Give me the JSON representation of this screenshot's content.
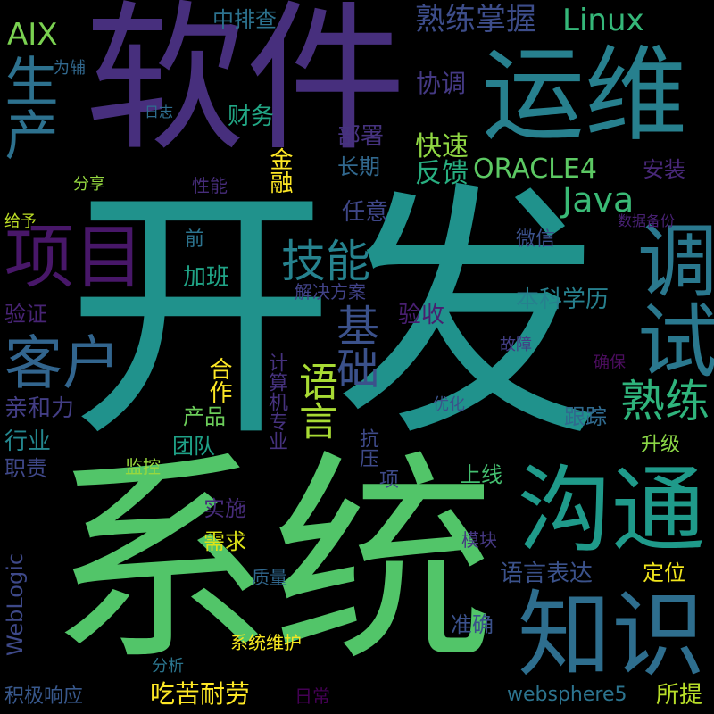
{
  "word_cloud": {
    "words": [
      {
        "text": "开发",
        "color": "#20928c",
        "orientation": "horizontal"
      },
      {
        "text": "系统",
        "color": "#52c569",
        "orientation": "horizontal"
      },
      {
        "text": "软件",
        "color": "#472f7d",
        "orientation": "horizontal"
      },
      {
        "text": "运维",
        "color": "#27808e",
        "orientation": "horizontal"
      },
      {
        "text": "沟通",
        "color": "#1f9a8a",
        "orientation": "horizontal"
      },
      {
        "text": "知识",
        "color": "#2e6e8e",
        "orientation": "horizontal"
      },
      {
        "text": "项目",
        "color": "#481769",
        "orientation": "horizontal"
      },
      {
        "text": "调试",
        "color": "#2a788e",
        "orientation": "vertical"
      },
      {
        "text": "客户",
        "color": "#32658e",
        "orientation": "horizontal"
      },
      {
        "text": "技能",
        "color": "#26828e",
        "orientation": "horizontal"
      },
      {
        "text": "熟练",
        "color": "#2fb47c",
        "orientation": "horizontal"
      },
      {
        "text": "基础",
        "color": "#3b518b",
        "orientation": "vertical"
      },
      {
        "text": "语言",
        "color": "#a8db34",
        "orientation": "vertical"
      },
      {
        "text": "生产",
        "color": "#2d718e",
        "orientation": "vertical"
      },
      {
        "text": "熟练掌握",
        "color": "#3d4d8a",
        "orientation": "horizontal"
      },
      {
        "text": "Linux",
        "color": "#35b779",
        "orientation": "horizontal"
      },
      {
        "text": "AIX",
        "color": "#7ad151",
        "orientation": "horizontal"
      },
      {
        "text": "中排查",
        "color": "#2c728e",
        "orientation": "horizontal"
      },
      {
        "text": "Java",
        "color": "#3aba76",
        "orientation": "horizontal"
      },
      {
        "text": "ORACLE4",
        "color": "#5cc863",
        "orientation": "horizontal"
      },
      {
        "text": "协调",
        "color": "#443983",
        "orientation": "horizontal"
      },
      {
        "text": "为辅",
        "color": "#31688e",
        "orientation": "horizontal"
      },
      {
        "text": "日志",
        "color": "#2e6d8e",
        "orientation": "horizontal"
      },
      {
        "text": "财务",
        "color": "#22a785",
        "orientation": "horizontal"
      },
      {
        "text": "部署",
        "color": "#46337f",
        "orientation": "horizontal"
      },
      {
        "text": "快速",
        "color": "#90d743",
        "orientation": "horizontal"
      },
      {
        "text": "反馈",
        "color": "#28ae80",
        "orientation": "horizontal"
      },
      {
        "text": "长期",
        "color": "#31688e",
        "orientation": "horizontal"
      },
      {
        "text": "金融",
        "color": "#fde725",
        "orientation": "vertical"
      },
      {
        "text": "安装",
        "color": "#482878",
        "orientation": "horizontal"
      },
      {
        "text": "分享",
        "color": "#95d840",
        "orientation": "horizontal"
      },
      {
        "text": "性能",
        "color": "#472d7b",
        "orientation": "horizontal"
      },
      {
        "text": "给予",
        "color": "#bddf26",
        "orientation": "horizontal"
      },
      {
        "text": "任意",
        "color": "#3f4788",
        "orientation": "horizontal"
      },
      {
        "text": "数据备份",
        "color": "#482173",
        "orientation": "horizontal"
      },
      {
        "text": "前",
        "color": "#2c738e",
        "orientation": "horizontal"
      },
      {
        "text": "微信",
        "color": "#3b518b",
        "orientation": "horizontal"
      },
      {
        "text": "加班",
        "color": "#20a386",
        "orientation": "horizontal"
      },
      {
        "text": "解决方案",
        "color": "#414287",
        "orientation": "horizontal"
      },
      {
        "text": "本科学历",
        "color": "#27808e",
        "orientation": "horizontal"
      },
      {
        "text": "验证",
        "color": "#482475",
        "orientation": "horizontal"
      },
      {
        "text": "验收",
        "color": "#481f70",
        "orientation": "horizontal"
      },
      {
        "text": "亲和力",
        "color": "#433e85",
        "orientation": "horizontal"
      },
      {
        "text": "合作",
        "color": "#fde725",
        "orientation": "vertical"
      },
      {
        "text": "产品",
        "color": "#6ccd5a",
        "orientation": "horizontal"
      },
      {
        "text": "计算机专业",
        "color": "#46327e",
        "orientation": "vertical"
      },
      {
        "text": "抗压",
        "color": "#3e4a89",
        "orientation": "vertical"
      },
      {
        "text": "故障",
        "color": "#433e85",
        "orientation": "horizontal"
      },
      {
        "text": "确保",
        "color": "#4c0d5f",
        "orientation": "horizontal"
      },
      {
        "text": "优化",
        "color": "#3b528b",
        "orientation": "horizontal"
      },
      {
        "text": "跟踪",
        "color": "#306a8e",
        "orientation": "horizontal"
      },
      {
        "text": "行业",
        "color": "#24868e",
        "orientation": "horizontal"
      },
      {
        "text": "团队",
        "color": "#1fa187",
        "orientation": "horizontal"
      },
      {
        "text": "升级",
        "color": "#8bd646",
        "orientation": "horizontal"
      },
      {
        "text": "职责",
        "color": "#3f4889",
        "orientation": "horizontal"
      },
      {
        "text": "监控",
        "color": "#98d83e",
        "orientation": "horizontal"
      },
      {
        "text": "上线",
        "color": "#44bf70",
        "orientation": "horizontal"
      },
      {
        "text": "项",
        "color": "#3e4a89",
        "orientation": "horizontal"
      },
      {
        "text": "WebLogic",
        "color": "#3e4989",
        "orientation": "vertical-rot"
      },
      {
        "text": "实施",
        "color": "#472c7a",
        "orientation": "horizontal"
      },
      {
        "text": "需求",
        "color": "#dde318",
        "orientation": "horizontal"
      },
      {
        "text": "模块",
        "color": "#453882",
        "orientation": "horizontal"
      },
      {
        "text": "质量",
        "color": "#31688e",
        "orientation": "horizontal"
      },
      {
        "text": "定位",
        "color": "#f1e51d",
        "orientation": "horizontal"
      },
      {
        "text": "语言表达",
        "color": "#3b528b",
        "orientation": "horizontal"
      },
      {
        "text": "准确",
        "color": "#3b518b",
        "orientation": "horizontal"
      },
      {
        "text": "系统维护",
        "color": "#f6e620",
        "orientation": "horizontal"
      },
      {
        "text": "分析",
        "color": "#2b758e",
        "orientation": "horizontal"
      },
      {
        "text": "积极响应",
        "color": "#38588c",
        "orientation": "horizontal"
      },
      {
        "text": "吃苦耐劳",
        "color": "#fde725",
        "orientation": "horizontal"
      },
      {
        "text": "日常",
        "color": "#440154",
        "orientation": "horizontal"
      },
      {
        "text": "websphere5",
        "color": "#2c738e",
        "orientation": "horizontal"
      },
      {
        "text": "所提",
        "color": "#b8de29",
        "orientation": "horizontal"
      }
    ]
  }
}
